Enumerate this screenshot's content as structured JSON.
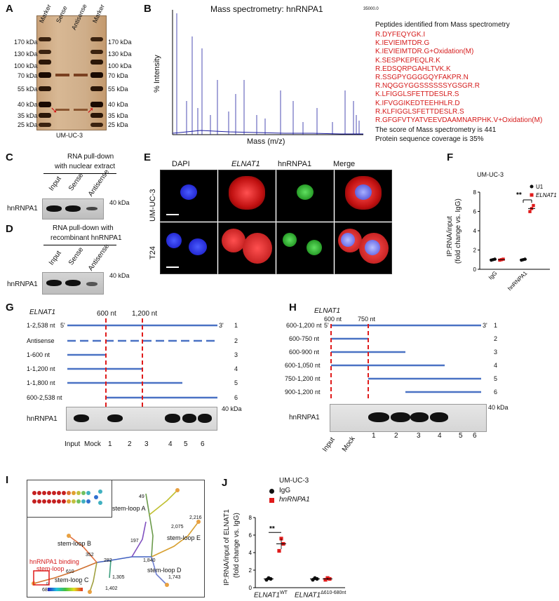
{
  "panels": {
    "A": "A",
    "B": "B",
    "C": "C",
    "D": "D",
    "E": "E",
    "F": "F",
    "G": "G",
    "H": "H",
    "I": "I",
    "J": "J"
  },
  "panelA": {
    "lanes": [
      "Marker",
      "Sense",
      "Antisense",
      "Marker"
    ],
    "markers": [
      "170 kDa",
      "130 kDa",
      "100 kDa",
      "70 kDa",
      "55 kDa",
      "40 kDa",
      "35 kDa",
      "25 kDa"
    ],
    "caption": "UM-UC-3"
  },
  "panelB": {
    "title": "Mass spectrometry: hnRNPA1",
    "ylabel": "% Intensity",
    "xlabel": "Mass (m/z)",
    "top_value": "35000.0",
    "peptides_header": "Peptides identified from Mass spectrometry",
    "peptides": [
      "R.DYFEQYGK.I",
      "K.IEVIEIMTDR.G",
      "K.IEVIEIMTDR.G+Oxidation(M)",
      "K.SESPKEPEQLR.K",
      "R.EDSQRPGAHLTVK.K",
      "R.SSGPYGGGGQYFAKPR.N",
      "R.NQGGYGGSSSSSSYGSGR.R",
      "K.LFIGGLSFETTDESLR.S",
      "K.IFVGGIKEDTEEHHLR.D",
      "R.KLFIGGLSFETTDESLR.S",
      "R.GFGFVTYATVEEVDAAMNARPHK.V+Oxidation(M)"
    ],
    "score": "The score of Mass spectrometry is 441",
    "coverage": "Protein sequence coverage is 35%"
  },
  "panelC": {
    "title1": "RNA pull-down",
    "title2": "with nuclear extract",
    "lanes": [
      "Input",
      "Sense",
      "Antisense"
    ],
    "row": "hnRNPA1",
    "marker": "40 kDa"
  },
  "panelD": {
    "title1": "RNA pull-down with",
    "title2": "recombinant hnRNPA1",
    "lanes": [
      "Input",
      "Sense",
      "Antisense"
    ],
    "row": "hnRNPA1",
    "marker": "40 kDa"
  },
  "panelE": {
    "cols": [
      "DAPI",
      "ELNAT1",
      "hnRNPA1",
      "Merge"
    ],
    "rows": [
      "UM-UC-3",
      "T24"
    ]
  },
  "panelF": {
    "title": "UM-UC-3",
    "ylabel1": "IP:RNA/input",
    "ylabel2": "(fold change vs. IgG)",
    "legend": [
      "U1",
      "ELNAT1"
    ],
    "sig": "**",
    "colors": {
      "u1": "#111111",
      "elnat1": "#e01b1b"
    }
  },
  "chart_data": [
    {
      "type": "scatter",
      "categories": [
        "IgG",
        "hnRNPA1"
      ],
      "series": [
        {
          "name": "U1",
          "values": [
            1.0,
            1.0
          ]
        },
        {
          "name": "ELNAT1",
          "values": [
            1.0,
            6.3
          ]
        }
      ],
      "ytick_labels": [
        "0",
        "2",
        "4",
        "6",
        "8"
      ],
      "ylim": [
        0,
        8
      ]
    },
    {
      "type": "scatter",
      "categories": [
        "ELNAT1 WT",
        "ELNAT1 Δ610-680nt"
      ],
      "series": [
        {
          "name": "IgG",
          "values": [
            1.0,
            1.0
          ]
        },
        {
          "name": "hnRNPA1",
          "values": [
            5.0,
            1.0
          ]
        }
      ],
      "ytick_labels": [
        "0",
        "2",
        "4",
        "6",
        "8"
      ],
      "ylim": [
        0,
        8
      ]
    }
  ],
  "panelG": {
    "gene": "ELNAT1",
    "marks": [
      "600 nt",
      "1,200 nt"
    ],
    "rows": [
      {
        "label": "1-2,538 nt",
        "num": "1"
      },
      {
        "label": "Antisense",
        "num": "2"
      },
      {
        "label": "1-600 nt",
        "num": "3"
      },
      {
        "label": "1-1,200 nt",
        "num": "4"
      },
      {
        "label": "1-1,800 nt",
        "num": "5"
      },
      {
        "label": "600-2,538 nt",
        "num": "6"
      }
    ],
    "five": "5'",
    "three": "3'",
    "row": "hnRNPA1",
    "marker": "40 kDa",
    "lanes": [
      "Input",
      "Mock",
      "1",
      "2",
      "3",
      "4",
      "5",
      "6"
    ]
  },
  "panelH": {
    "gene": "ELNAT1",
    "marks": [
      "600 nt",
      "750 nt"
    ],
    "rows": [
      {
        "label": "600-1,200 nt",
        "num": "1"
      },
      {
        "label": "600-750 nt",
        "num": "2"
      },
      {
        "label": "600-900 nt",
        "num": "3"
      },
      {
        "label": "600-1,050 nt",
        "num": "4"
      },
      {
        "label": "750-1,200 nt",
        "num": "5"
      },
      {
        "label": "900-1,200 nt",
        "num": "6"
      }
    ],
    "five": "5'",
    "three": "3'",
    "row": "hnRNPA1",
    "marker": "40 kDa",
    "lanes": [
      "Input",
      "Mock",
      "1",
      "2",
      "3",
      "4",
      "5",
      "6"
    ]
  },
  "panelI": {
    "stemloops": [
      "stem-loop A",
      "stem-loop B",
      "stem-loop C",
      "stem-loop D",
      "stem-loop E"
    ],
    "binding1": "hnRNPA1 binding",
    "binding2": "stem-loop",
    "nums": [
      "49",
      "2,216",
      "2,075",
      "197",
      "352",
      "282",
      "1,840",
      "610",
      "680",
      "1,305",
      "1,743",
      "1,402"
    ],
    "scale_min": "0",
    "scale_max": "1"
  },
  "panelJ": {
    "title": "UM-UC-3",
    "legend": [
      "IgG",
      "hnRNPA1"
    ],
    "ylabel1": "IP:RNA/input of ELNAT1",
    "ylabel2": "(fold change vs. IgG)",
    "sig": "**",
    "xl1": "ELNAT1",
    "xl1sup": "WT",
    "xl2": "ELNAT1",
    "xl2sup": "Δ610-680nt"
  }
}
